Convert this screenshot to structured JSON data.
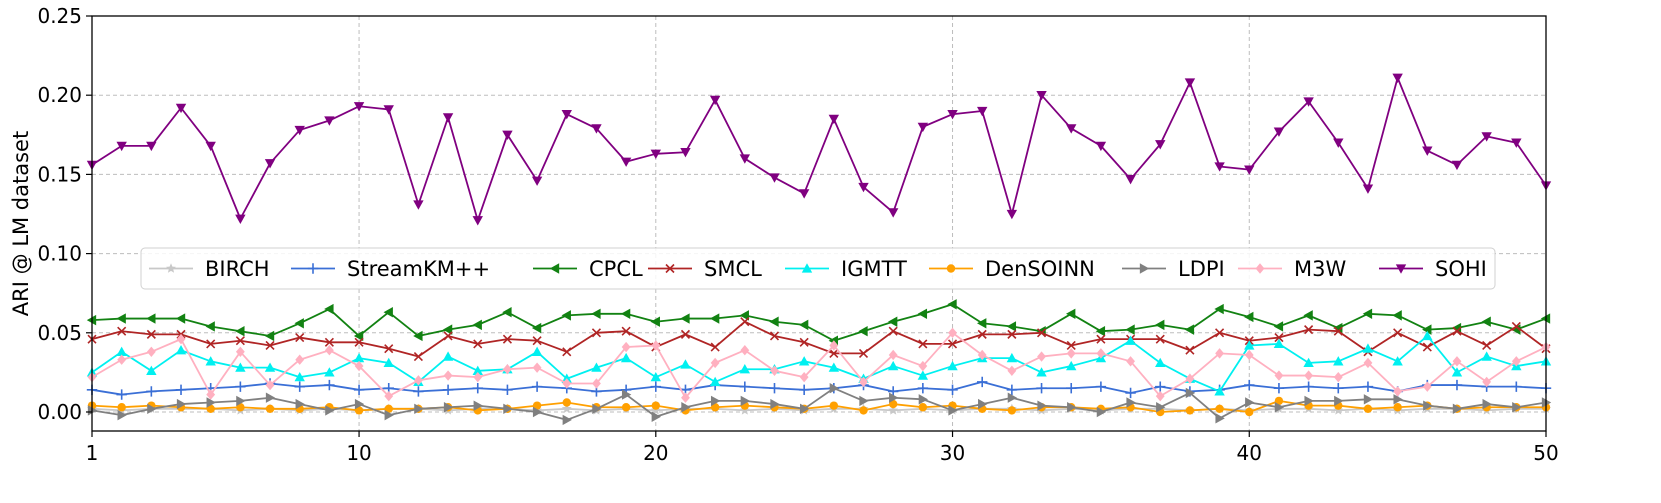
{
  "chart_data": {
    "type": "line",
    "title": "",
    "xlabel": "",
    "ylabel": "ARI @ LM dataset",
    "xlim": [
      1,
      50
    ],
    "ylim": [
      -0.012,
      0.25
    ],
    "xticks": [
      1,
      10,
      20,
      30,
      40,
      50
    ],
    "yticks": [
      0.0,
      0.05,
      0.1,
      0.15,
      0.2,
      0.25
    ],
    "ytick_labels": [
      "0.00",
      "0.05",
      "0.10",
      "0.15",
      "0.20",
      "0.25"
    ],
    "grid": true,
    "legend_placement": "center (one row)",
    "x": [
      1,
      2,
      3,
      4,
      5,
      6,
      7,
      8,
      9,
      10,
      11,
      12,
      13,
      14,
      15,
      16,
      17,
      18,
      19,
      20,
      21,
      22,
      23,
      24,
      25,
      26,
      27,
      28,
      29,
      30,
      31,
      32,
      33,
      34,
      35,
      36,
      37,
      38,
      39,
      40,
      41,
      42,
      43,
      44,
      45,
      46,
      47,
      48,
      49,
      50
    ],
    "series": [
      {
        "name": "BIRCH",
        "color": "#c8c8c8",
        "marker": "star",
        "values": [
          0.002,
          0.001,
          0.002,
          0.002,
          0.002,
          0.001,
          0.002,
          0.001,
          0.002,
          0.001,
          0.002,
          0.002,
          0.001,
          0.002,
          0.002,
          0.001,
          0.002,
          0.001,
          0.002,
          0.001,
          0.002,
          0.002,
          0.001,
          0.002,
          0.001,
          0.002,
          0.002,
          0.001,
          0.002,
          0.001,
          0.002,
          0.002,
          0.001,
          0.002,
          0.001,
          0.002,
          0.002,
          0.001,
          0.002,
          0.001,
          0.002,
          0.002,
          0.001,
          0.002,
          0.001,
          0.002,
          0.002,
          0.001,
          0.002,
          0.002
        ]
      },
      {
        "name": "StreamKM++",
        "color": "#3a6fd6",
        "marker": "plus",
        "values": [
          0.014,
          0.011,
          0.013,
          0.014,
          0.015,
          0.016,
          0.018,
          0.016,
          0.017,
          0.014,
          0.015,
          0.013,
          0.014,
          0.015,
          0.014,
          0.016,
          0.015,
          0.013,
          0.014,
          0.016,
          0.014,
          0.017,
          0.016,
          0.015,
          0.014,
          0.015,
          0.017,
          0.013,
          0.015,
          0.014,
          0.019,
          0.014,
          0.015,
          0.015,
          0.016,
          0.012,
          0.016,
          0.013,
          0.014,
          0.017,
          0.015,
          0.016,
          0.015,
          0.016,
          0.013,
          0.017,
          0.017,
          0.016,
          0.016,
          0.015
        ]
      },
      {
        "name": "CPCL",
        "color": "#128212",
        "marker": "triangle-left",
        "values": [
          0.058,
          0.059,
          0.059,
          0.059,
          0.054,
          0.051,
          0.048,
          0.056,
          0.065,
          0.048,
          0.063,
          0.048,
          0.052,
          0.055,
          0.063,
          0.053,
          0.061,
          0.062,
          0.062,
          0.057,
          0.059,
          0.059,
          0.061,
          0.057,
          0.055,
          0.045,
          0.051,
          0.057,
          0.062,
          0.068,
          0.056,
          0.054,
          0.051,
          0.062,
          0.051,
          0.052,
          0.055,
          0.052,
          0.065,
          0.06,
          0.054,
          0.061,
          0.053,
          0.062,
          0.061,
          0.052,
          0.053,
          0.057,
          0.052,
          0.059
        ]
      },
      {
        "name": "SMCL",
        "color": "#b02525",
        "marker": "x",
        "values": [
          0.046,
          0.051,
          0.049,
          0.049,
          0.043,
          0.045,
          0.042,
          0.047,
          0.044,
          0.044,
          0.04,
          0.035,
          0.048,
          0.043,
          0.046,
          0.045,
          0.038,
          0.05,
          0.051,
          0.041,
          0.049,
          0.041,
          0.057,
          0.048,
          0.044,
          0.037,
          0.037,
          0.051,
          0.043,
          0.043,
          0.049,
          0.049,
          0.05,
          0.042,
          0.046,
          0.046,
          0.046,
          0.039,
          0.05,
          0.045,
          0.047,
          0.052,
          0.051,
          0.038,
          0.05,
          0.041,
          0.051,
          0.042,
          0.054,
          0.04
        ]
      },
      {
        "name": "IGMTT",
        "color": "#00f0f0",
        "marker": "triangle-up",
        "values": [
          0.025,
          0.038,
          0.026,
          0.039,
          0.032,
          0.028,
          0.028,
          0.022,
          0.025,
          0.034,
          0.031,
          0.019,
          0.035,
          0.026,
          0.027,
          0.038,
          0.021,
          0.028,
          0.034,
          0.022,
          0.03,
          0.019,
          0.027,
          0.027,
          0.032,
          0.028,
          0.021,
          0.029,
          0.023,
          0.029,
          0.034,
          0.034,
          0.025,
          0.029,
          0.034,
          0.045,
          0.031,
          0.021,
          0.013,
          0.042,
          0.043,
          0.031,
          0.032,
          0.04,
          0.032,
          0.048,
          0.025,
          0.035,
          0.029,
          0.032
        ]
      },
      {
        "name": "DenSOINN",
        "color": "#ffa000",
        "marker": "circle",
        "values": [
          0.004,
          0.003,
          0.004,
          0.003,
          0.002,
          0.003,
          0.002,
          0.002,
          0.003,
          0.001,
          0.002,
          0.002,
          0.003,
          0.001,
          0.002,
          0.004,
          0.006,
          0.003,
          0.003,
          0.004,
          0.001,
          0.003,
          0.004,
          0.003,
          0.002,
          0.004,
          0.001,
          0.005,
          0.003,
          0.004,
          0.002,
          0.001,
          0.003,
          0.003,
          0.002,
          0.003,
          0.0,
          0.001,
          0.002,
          -0.0,
          0.007,
          0.004,
          0.004,
          0.002,
          0.003,
          0.004,
          0.002,
          0.003,
          0.003,
          0.003
        ]
      },
      {
        "name": "LDPI",
        "color": "#808080",
        "marker": "triangle-right",
        "values": [
          0.001,
          -0.002,
          0.002,
          0.005,
          0.006,
          0.007,
          0.009,
          0.005,
          0.001,
          0.005,
          -0.002,
          0.002,
          0.003,
          0.004,
          0.002,
          0.0,
          -0.005,
          0.002,
          0.011,
          -0.003,
          0.003,
          0.007,
          0.007,
          0.005,
          0.002,
          0.015,
          0.007,
          0.009,
          0.008,
          0.001,
          0.005,
          0.009,
          0.004,
          0.003,
          -0.0,
          0.006,
          0.003,
          0.012,
          -0.004,
          0.006,
          0.003,
          0.007,
          0.007,
          0.008,
          0.008,
          0.004,
          0.002,
          0.005,
          0.003,
          0.006
        ]
      },
      {
        "name": "M3W",
        "color": "#ffb0c0",
        "marker": "diamond",
        "values": [
          0.022,
          0.033,
          0.038,
          0.046,
          0.011,
          0.038,
          0.017,
          0.033,
          0.039,
          0.029,
          0.01,
          0.02,
          0.023,
          0.022,
          0.027,
          0.028,
          0.018,
          0.018,
          0.041,
          0.042,
          0.009,
          0.031,
          0.039,
          0.026,
          0.022,
          0.042,
          0.019,
          0.036,
          0.029,
          0.05,
          0.036,
          0.026,
          0.035,
          0.037,
          0.037,
          0.032,
          0.01,
          0.021,
          0.037,
          0.036,
          0.023,
          0.023,
          0.022,
          0.031,
          0.013,
          0.016,
          0.032,
          0.019,
          0.032,
          0.041
        ]
      },
      {
        "name": "SOHI",
        "color": "#800080",
        "marker": "triangle-down",
        "values": [
          0.156,
          0.168,
          0.168,
          0.192,
          0.168,
          0.122,
          0.157,
          0.178,
          0.184,
          0.193,
          0.191,
          0.131,
          0.186,
          0.121,
          0.175,
          0.146,
          0.188,
          0.179,
          0.158,
          0.163,
          0.164,
          0.197,
          0.16,
          0.148,
          0.138,
          0.185,
          0.142,
          0.126,
          0.18,
          0.188,
          0.19,
          0.125,
          0.2,
          0.179,
          0.168,
          0.147,
          0.169,
          0.208,
          0.155,
          0.153,
          0.177,
          0.196,
          0.17,
          0.141,
          0.211,
          0.165,
          0.156,
          0.174,
          0.17,
          0.143
        ]
      }
    ]
  }
}
